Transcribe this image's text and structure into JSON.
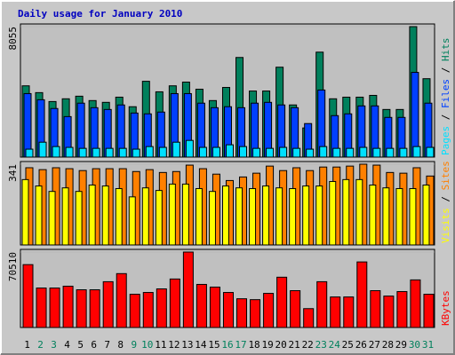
{
  "chart_data": [
    {
      "type": "bar",
      "title": "Daily usage for January 2010",
      "categories": [
        "1",
        "2",
        "3",
        "4",
        "5",
        "6",
        "7",
        "8",
        "9",
        "10",
        "11",
        "12",
        "13",
        "14",
        "15",
        "16",
        "17",
        "18",
        "19",
        "20",
        "21",
        "22",
        "23",
        "24",
        "25",
        "26",
        "27",
        "28",
        "29",
        "30",
        "31"
      ],
      "category_colors": [
        "#000000",
        "#00805c",
        "#00805c",
        "#000000",
        "#000000",
        "#000000",
        "#000000",
        "#000000",
        "#00805c",
        "#00805c",
        "#000000",
        "#000000",
        "#000000",
        "#000000",
        "#000000",
        "#00805c",
        "#00805c",
        "#000000",
        "#000000",
        "#000000",
        "#000000",
        "#000000",
        "#00805c",
        "#00805c",
        "#000000",
        "#000000",
        "#000000",
        "#000000",
        "#000000",
        "#00805c",
        "#00805c"
      ],
      "legend_separator": " / ",
      "series": [
        {
          "name": "Hits",
          "color": "#00805c",
          "values": [
            4400,
            3980,
            3430,
            3600,
            3760,
            3490,
            3380,
            3700,
            3110,
            4680,
            4030,
            4400,
            4630,
            4190,
            3490,
            4300,
            6150,
            4080,
            4080,
            5550,
            3220,
            1800,
            6480,
            3600,
            3700,
            3700,
            3810,
            2940,
            2940,
            8055,
            4840
          ]
        },
        {
          "name": "Files",
          "color": "#0040ff",
          "values": [
            3920,
            3540,
            3000,
            2500,
            3330,
            3050,
            2940,
            3220,
            2720,
            2670,
            2780,
            3920,
            3920,
            3330,
            3050,
            3110,
            3050,
            3330,
            3380,
            3220,
            3050,
            2070,
            4140,
            2560,
            2670,
            3160,
            3160,
            2450,
            2450,
            5230,
            3330
          ]
        },
        {
          "name": "Pages",
          "color": "#00e0ff",
          "values": [
            490,
            920,
            650,
            600,
            540,
            540,
            540,
            540,
            490,
            650,
            600,
            920,
            1030,
            600,
            600,
            760,
            650,
            540,
            540,
            600,
            540,
            490,
            650,
            540,
            540,
            600,
            540,
            540,
            540,
            650,
            600
          ]
        }
      ],
      "ylim": [
        0,
        8055
      ],
      "yticks": [
        8055
      ]
    },
    {
      "type": "bar",
      "series": [
        {
          "name": "Sites",
          "color": "#ff8000",
          "values": [
            326,
            318,
            326,
            322,
            314,
            322,
            322,
            322,
            310,
            318,
            306,
            310,
            337,
            322,
            299,
            272,
            287,
            303,
            333,
            314,
            326,
            314,
            329,
            329,
            333,
            341,
            337,
            306,
            303,
            326,
            291
          ]
        },
        {
          "name": "Visits",
          "color": "#ffff00",
          "values": [
            276,
            249,
            226,
            241,
            226,
            253,
            249,
            238,
            203,
            241,
            230,
            257,
            257,
            238,
            226,
            249,
            241,
            238,
            249,
            241,
            238,
            249,
            249,
            268,
            276,
            276,
            253,
            241,
            238,
            238,
            253
          ]
        }
      ],
      "ylim": [
        0,
        341
      ],
      "yticks": [
        341
      ]
    },
    {
      "type": "bar",
      "series": [
        {
          "name": "KBytes",
          "color": "#ff0000",
          "values": [
            58760,
            36900,
            36900,
            38600,
            35250,
            35250,
            42800,
            50350,
            31050,
            32730,
            36080,
            45320,
            70510,
            40270,
            37760,
            32730,
            26850,
            26010,
            31890,
            47000,
            34410,
            17620,
            42800,
            28530,
            28530,
            61280,
            34410,
            29370,
            33570,
            44480,
            31050
          ]
        }
      ],
      "ylim": [
        0,
        70510
      ],
      "yticks": [
        70510
      ]
    }
  ]
}
